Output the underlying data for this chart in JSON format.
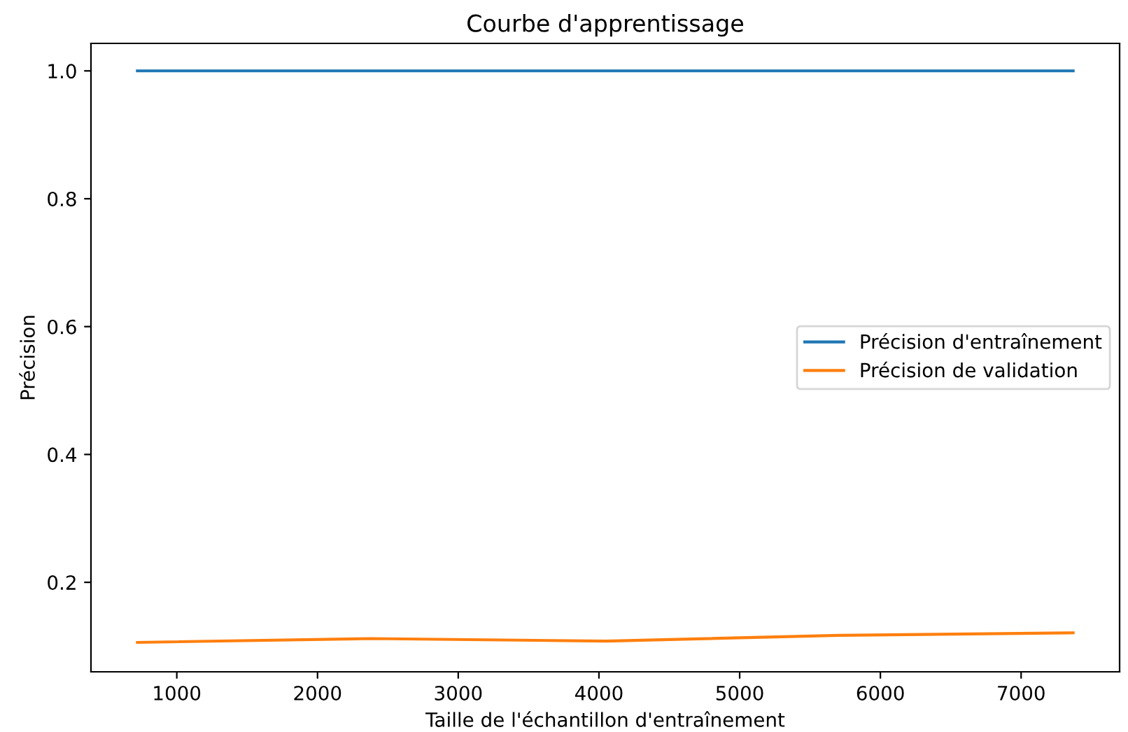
{
  "chart_data": {
    "type": "line",
    "title": "Courbe d'apprentissage",
    "xlabel": "Taille de l'échantillon d'entraînement",
    "ylabel": "Précision",
    "x": [
      720,
      2380,
      4050,
      5710,
      7370
    ],
    "series": [
      {
        "name": "Précision d'entraînement",
        "color": "#1f77b4",
        "values": [
          1.0,
          1.0,
          1.0,
          1.0,
          1.0
        ]
      },
      {
        "name": "Précision de validation",
        "color": "#ff7f0e",
        "values": [
          0.106,
          0.112,
          0.108,
          0.117,
          0.121
        ]
      }
    ],
    "xlim": [
      390,
      7700
    ],
    "ylim": [
      0.06,
      1.043
    ],
    "xticks": [
      1000,
      2000,
      3000,
      4000,
      5000,
      6000,
      7000
    ],
    "yticks": [
      0.2,
      0.4,
      0.6,
      0.8,
      {
        "value": 1,
        "label": "1.0"
      }
    ],
    "grid": false,
    "legend": "right",
    "marker": "none",
    "line_style": "solid"
  }
}
